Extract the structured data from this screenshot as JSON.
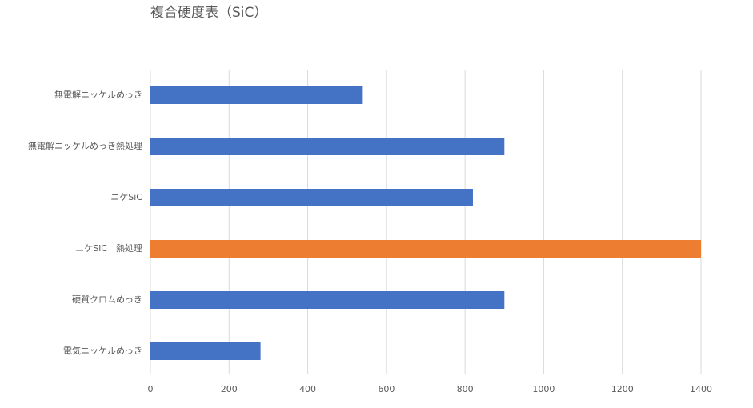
{
  "chart_data": {
    "type": "hbar",
    "title": "複合硬度表（SiC）",
    "categories": [
      "無電解ニッケルめっき",
      "無電解ニッケルめっき熱処理",
      "ニケSiC",
      "ニケSiC　熱処理",
      "硬質クロムめっき",
      "電気ニッケルめっき"
    ],
    "values": [
      540,
      900,
      820,
      1400,
      900,
      280
    ],
    "colors": [
      "#4472c4",
      "#4472c4",
      "#4472c4",
      "#ed7d31",
      "#4472c4",
      "#4472c4"
    ],
    "xlim": [
      0,
      1400
    ],
    "xticks": [
      0,
      200,
      400,
      600,
      800,
      1000,
      1200,
      1400
    ],
    "grid": true
  }
}
